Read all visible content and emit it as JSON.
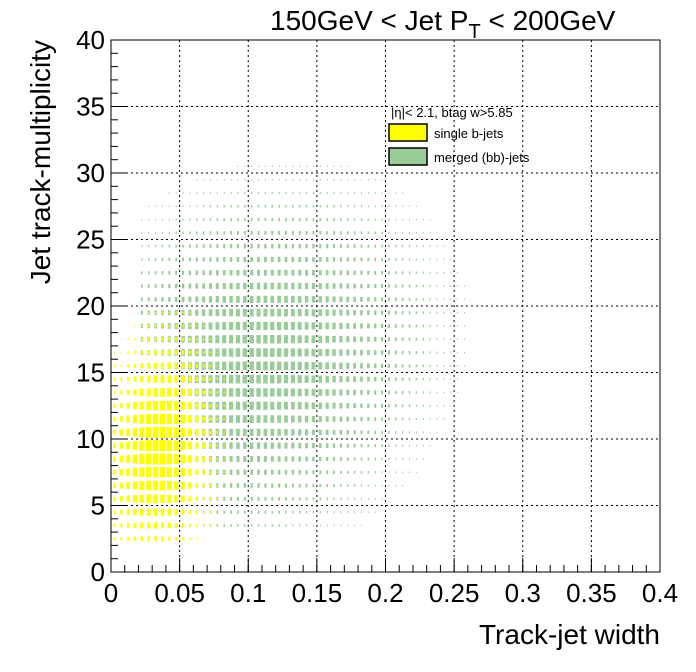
{
  "chart_data": {
    "type": "heatmap",
    "title": "150GeV < Jet P",
    "title_subscript": "T",
    "title_suffix": " < 200GeV",
    "xlabel": "Track-jet width",
    "ylabel": "Jet track-multiplicity",
    "xlim": [
      0,
      0.4
    ],
    "ylim": [
      0,
      40
    ],
    "x_ticks": [
      "0",
      "0.05",
      "0.1",
      "0.15",
      "0.2",
      "0.25",
      "0.3",
      "0.35",
      "0.4"
    ],
    "y_ticks": [
      "0",
      "5",
      "10",
      "15",
      "20",
      "25",
      "30",
      "35",
      "40"
    ],
    "grid": true,
    "legend_header": "|η|< 2.1, btag w>5.85",
    "legend_placement": "top-right",
    "bin_width_x": 0.005,
    "bin_width_y": 1,
    "series": [
      {
        "name": "single b-jets",
        "color": "#ffff00",
        "center": [
          0.035,
          9.5
        ],
        "spread": [
          0.018,
          3.8
        ],
        "x_range": [
          0.0,
          0.18
        ],
        "y_range": [
          2,
          20
        ],
        "peak_fraction": 0.78
      },
      {
        "name": "merged (bb)-jets",
        "color": "#99cc99",
        "center": [
          0.105,
          15.5
        ],
        "spread": [
          0.055,
          5.5
        ],
        "x_range": [
          0.02,
          0.32
        ],
        "y_range": [
          3,
          33
        ],
        "peak_fraction": 0.6
      }
    ]
  }
}
